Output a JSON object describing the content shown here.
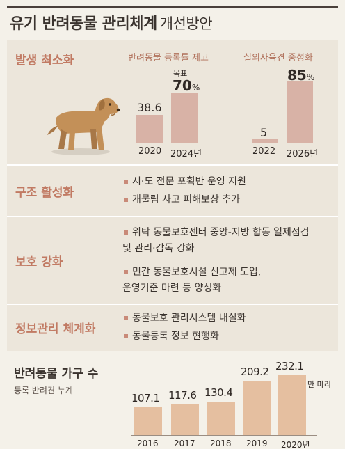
{
  "header": {
    "title": "유기 반려동물 관리체계",
    "subtitle": "개선방안"
  },
  "sections": {
    "reduce": {
      "label": "발생 최소화"
    },
    "rescue": {
      "label": "구조 활성화",
      "bullets": [
        "시·도 전문 포획반 운영 지원",
        "개물림 사고 피해보상 추가"
      ]
    },
    "protect": {
      "label": "보호 강화",
      "bullets": [
        [
          "위탁 동물보호센터 중앙-지방 합동 일제점검",
          "및 관리·감독 강화"
        ],
        [
          "민간 동물보호시설 신고제 도입,",
          "운영기준 마련 등 양성화"
        ]
      ]
    },
    "info": {
      "label": "정보관리 체계화",
      "bullets": [
        "동물보호 관리시스템 내실화",
        "동물등록 정보 현행화"
      ]
    }
  },
  "chart_data": [
    {
      "type": "bar",
      "title": "반려동물 등록률 제고",
      "categories": [
        "2020",
        "2024년"
      ],
      "values": [
        38.6,
        70
      ],
      "value_labels": [
        "38.6",
        "70"
      ],
      "value_suffix": "%",
      "annotation": "목표",
      "ylim": [
        0,
        100
      ]
    },
    {
      "type": "bar",
      "title": "실외사육견 중성화",
      "categories": [
        "2022",
        "2026년"
      ],
      "values": [
        5,
        85
      ],
      "value_labels": [
        "5",
        "85"
      ],
      "value_suffix": "%",
      "ylim": [
        0,
        100
      ]
    },
    {
      "type": "bar",
      "title": "반려동물 가구 수",
      "subtitle": "등록 반려견 누계",
      "unit": "만 마리",
      "categories": [
        "2016",
        "2017",
        "2018",
        "2019",
        "2020년"
      ],
      "values": [
        107.1,
        117.6,
        130.4,
        209.2,
        232.1
      ],
      "value_labels": [
        "107.1",
        "117.6",
        "130.4",
        "209.2",
        "232.1"
      ]
    }
  ],
  "colors": {
    "accent": "#c17a63",
    "bar_pink": "#d8b2a6",
    "bar_orange": "#e5bfa0",
    "panel": "#ece6db"
  },
  "icons": {
    "dog": "dog-icon",
    "bullet": "square-bullet-icon"
  }
}
